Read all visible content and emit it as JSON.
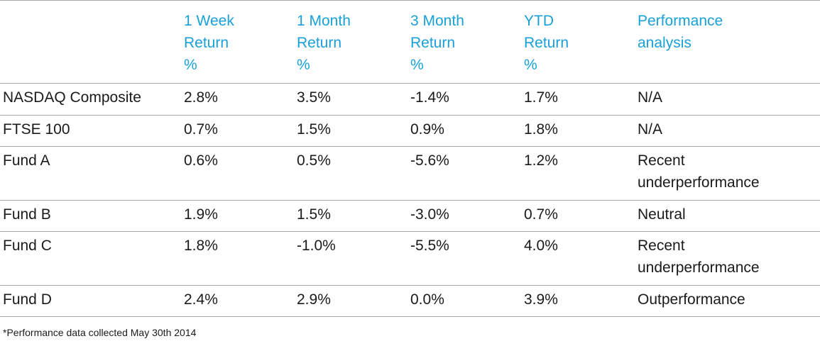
{
  "table": {
    "headers": [
      "",
      "1 Week\nReturn\n%",
      "1 Month\nReturn\n%",
      "3 Month\nReturn\n%",
      "YTD\nReturn\n%",
      "Performance\nanalysis"
    ],
    "rows": [
      [
        "NASDAQ Composite",
        "2.8%",
        "3.5%",
        "-1.4%",
        "1.7%",
        "N/A"
      ],
      [
        "FTSE 100",
        "0.7%",
        "1.5%",
        "0.9%",
        "1.8%",
        "N/A"
      ],
      [
        "Fund A",
        "0.6%",
        "0.5%",
        "-5.6%",
        "1.2%",
        "Recent\nunderperformance"
      ],
      [
        "Fund B",
        "1.9%",
        "1.5%",
        "-3.0%",
        "0.7%",
        "Neutral"
      ],
      [
        "Fund C",
        "1.8%",
        "-1.0%",
        "-5.5%",
        "4.0%",
        "Recent\nunderperformance"
      ],
      [
        "Fund D",
        "2.4%",
        "2.9%",
        "0.0%",
        "3.9%",
        "Outperformance"
      ]
    ]
  },
  "footnote": "*Performance data collected May 30th 2014",
  "colors": {
    "header_text": "#1aa0d8",
    "body_text": "#1a1a1a",
    "rule": "#a8a8a8"
  }
}
